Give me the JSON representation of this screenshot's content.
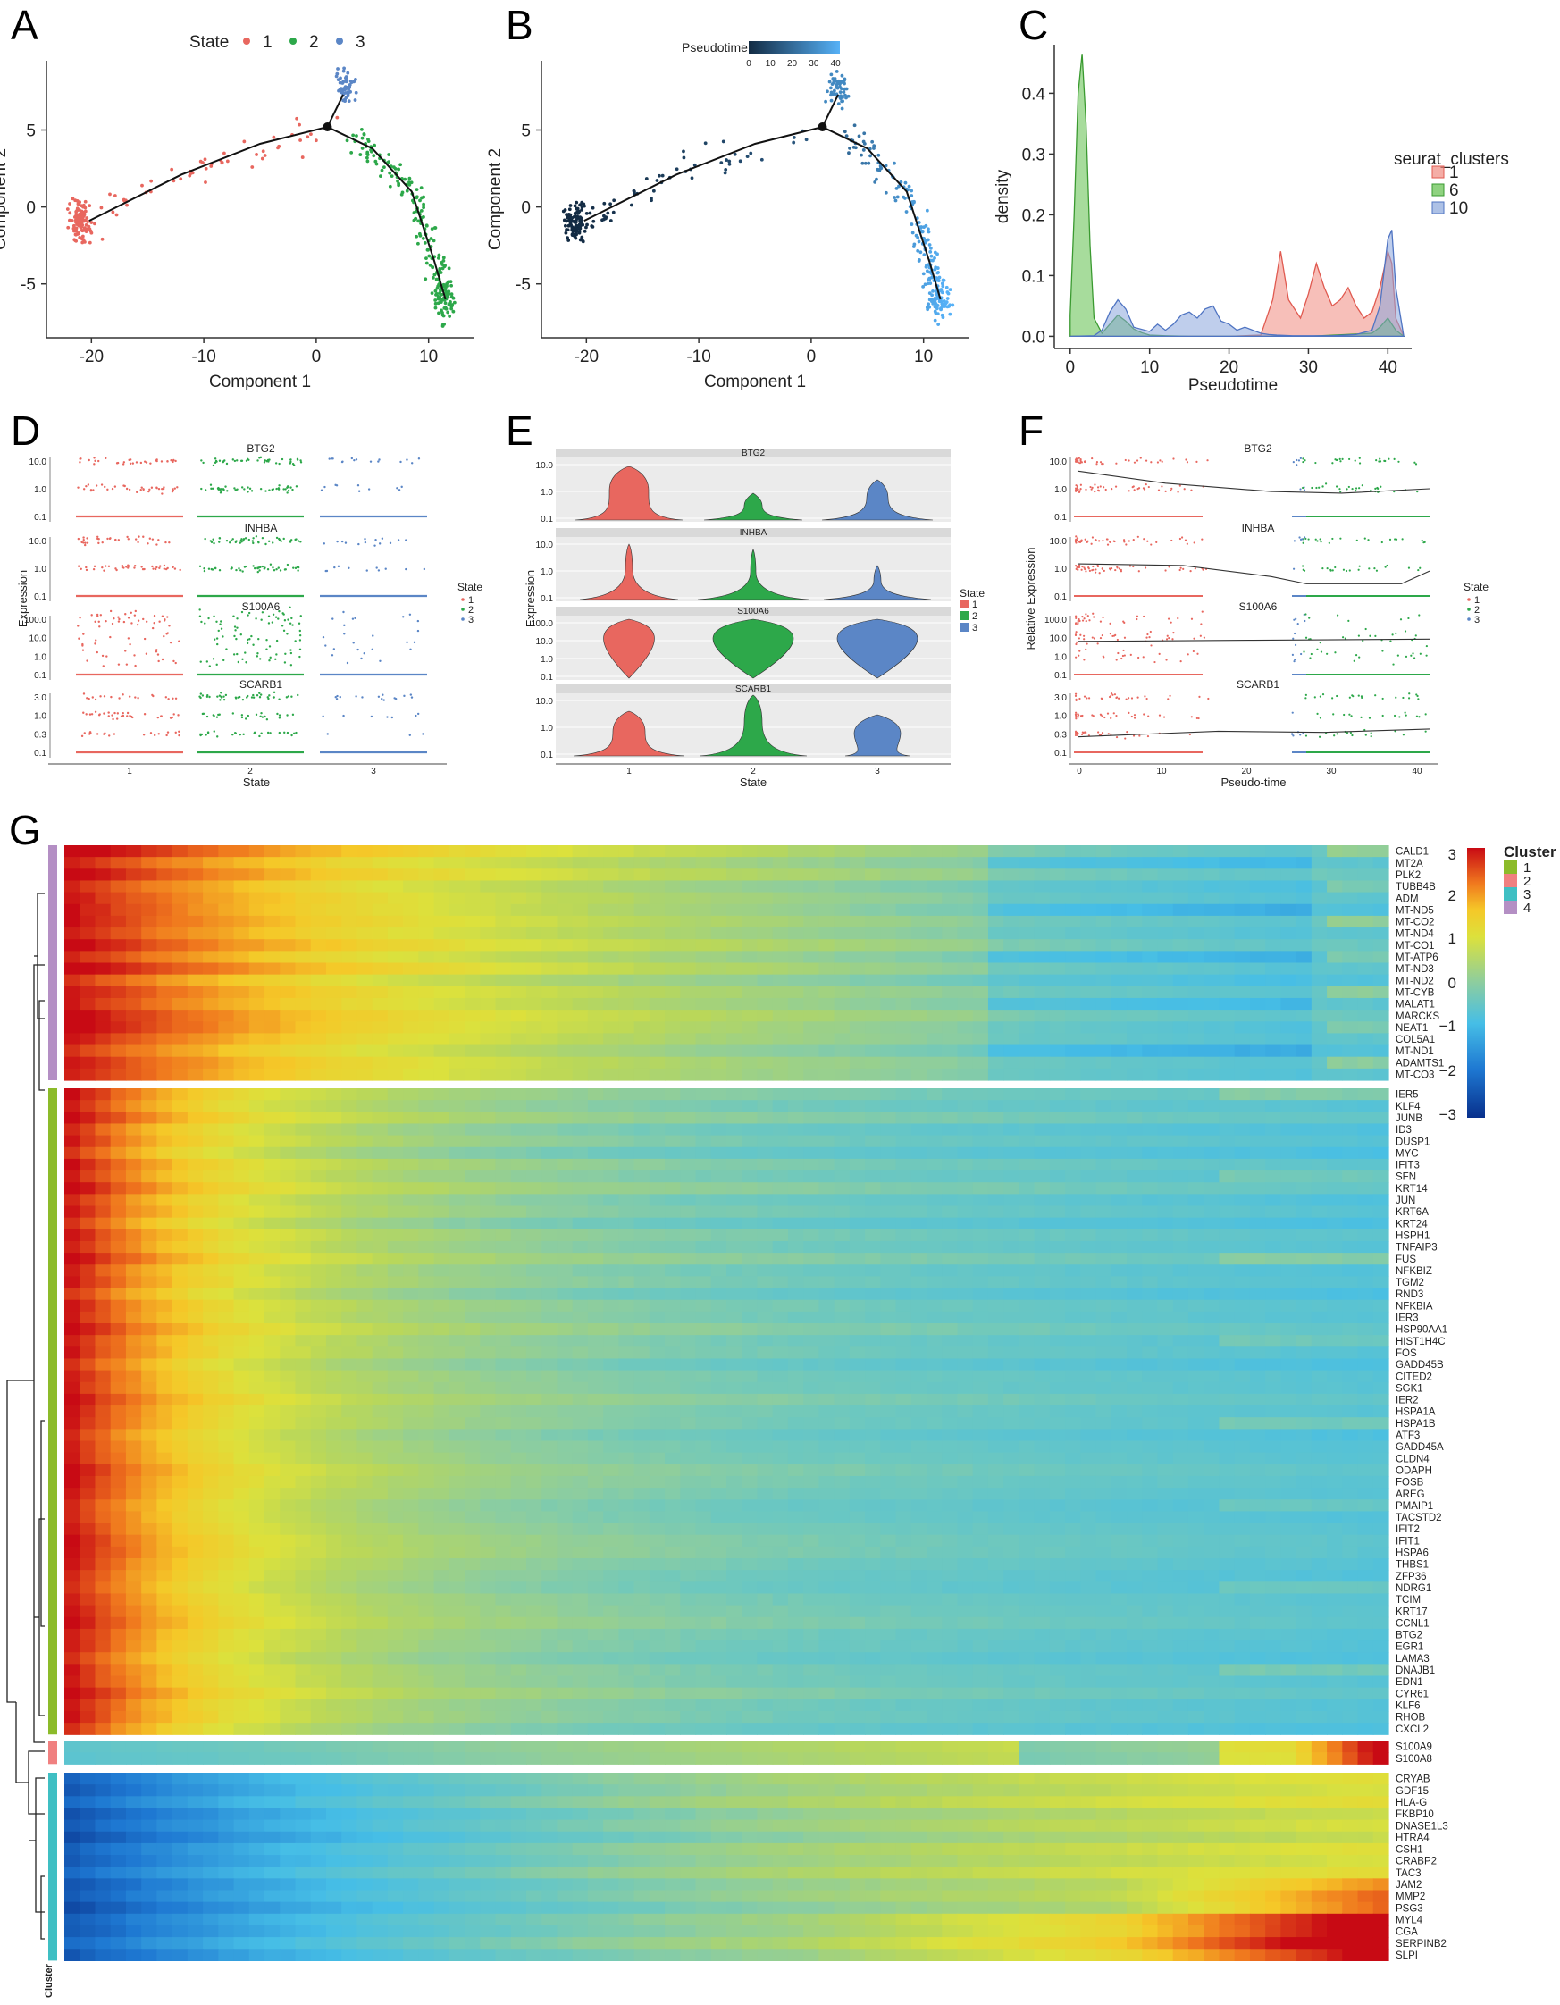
{
  "panel_letters": [
    "A",
    "B",
    "C",
    "D",
    "E",
    "F",
    "G"
  ],
  "colors": {
    "state1": "#e8675f",
    "state2": "#2da84a",
    "state3": "#5b86c6",
    "dens1": "#f08a80",
    "dens6": "#5fbf4a",
    "dens10": "#8aa6dc",
    "cluster1": "#8cbb2a",
    "cluster2": "#f08080",
    "cluster3": "#3fbfc3",
    "cluster4": "#b48fc4"
  },
  "chart_data": [
    {
      "id": "A",
      "type": "scatter",
      "title": "",
      "xlabel": "Component 1",
      "ylabel": "Component 2",
      "xlim": [
        -24,
        14
      ],
      "ylim": [
        -8.5,
        9.5
      ],
      "xticks": [
        -20,
        -10,
        0,
        10
      ],
      "yticks": [
        -5,
        0,
        5
      ],
      "legend": {
        "title": "State",
        "entries": [
          "1",
          "2",
          "3"
        ],
        "placement": "top"
      },
      "trajectory": [
        [
          -20.2,
          -0.9
        ],
        [
          -12,
          2.1
        ],
        [
          -5,
          4.1
        ],
        [
          1,
          5.2
        ],
        [
          5,
          3.8
        ],
        [
          8.5,
          1
        ],
        [
          10.5,
          -3.5
        ],
        [
          11.5,
          -6
        ]
      ],
      "branch": [
        [
          1,
          5.2
        ],
        [
          2.4,
          7.3
        ]
      ],
      "series": [
        {
          "name": "1",
          "path": [
            [
              -20.8,
              -1.2
            ],
            [
              -12,
              2.1
            ],
            [
              1,
              5.0
            ]
          ],
          "cluster": [
            -21,
            -1
          ],
          "n_cluster": 110,
          "n_spread": 55
        },
        {
          "name": "2",
          "path": [
            [
              3,
              4.8
            ],
            [
              8.5,
              1
            ],
            [
              10.5,
              -3.5
            ],
            [
              11.5,
              -6
            ]
          ],
          "cluster": [
            11.4,
            -6
          ],
          "n_cluster": 60,
          "n_spread": 160
        },
        {
          "name": "3",
          "path": [
            [
              2.4,
              7.8
            ]
          ],
          "cluster": [
            2.4,
            7.8
          ],
          "n_cluster": 50,
          "n_spread": 0
        }
      ]
    },
    {
      "id": "B",
      "type": "scatter",
      "title": "",
      "xlabel": "Component 1",
      "ylabel": "Component 2",
      "xlim": [
        -24,
        14
      ],
      "ylim": [
        -8.5,
        9.5
      ],
      "xticks": [
        -20,
        -10,
        0,
        10
      ],
      "yticks": [
        -5,
        0,
        5
      ],
      "legend": {
        "title": "Pseudotime",
        "ticks": [
          0,
          10,
          20,
          30,
          40
        ],
        "range": [
          0,
          42
        ],
        "low_color": "#132b43",
        "high_color": "#56b1f7",
        "placement": "top"
      },
      "trajectory": [
        [
          -20.2,
          -0.9
        ],
        [
          -12,
          2.1
        ],
        [
          -5,
          4.1
        ],
        [
          1,
          5.2
        ],
        [
          5,
          3.8
        ],
        [
          8.5,
          1
        ],
        [
          10.5,
          -3.5
        ],
        [
          11.5,
          -6
        ]
      ],
      "branch": [
        [
          1,
          5.2
        ],
        [
          2.4,
          7.3
        ]
      ]
    },
    {
      "id": "C",
      "type": "area",
      "title": "",
      "xlabel": "Pseudotime",
      "ylabel": "density",
      "xlim": [
        -2,
        43
      ],
      "ylim": [
        -0.02,
        0.48
      ],
      "xticks": [
        0,
        10,
        20,
        30,
        40
      ],
      "yticks": [
        0.0,
        0.1,
        0.2,
        0.3,
        0.4
      ],
      "legend": {
        "title": "seurat_clusters",
        "entries": [
          "1",
          "6",
          "10"
        ],
        "placement": "right"
      },
      "series": [
        {
          "name": "1",
          "x": [
            0,
            20,
            24,
            25.5,
            26.5,
            27.5,
            29,
            30,
            31,
            32,
            33,
            34,
            35,
            36,
            37,
            38,
            39,
            40,
            40.5,
            41,
            42
          ],
          "y": [
            0,
            0,
            0.002,
            0.06,
            0.14,
            0.06,
            0.03,
            0.07,
            0.12,
            0.08,
            0.05,
            0.06,
            0.08,
            0.05,
            0.03,
            0.04,
            0.08,
            0.14,
            0.12,
            0.03,
            0
          ]
        },
        {
          "name": "6",
          "x": [
            0,
            0.5,
            1,
            1.5,
            2,
            2.5,
            3,
            4,
            5,
            6,
            7,
            8,
            9,
            10,
            12,
            15,
            20,
            30,
            38,
            39,
            40,
            41,
            42
          ],
          "y": [
            0.035,
            0.2,
            0.4,
            0.465,
            0.35,
            0.15,
            0.03,
            0.005,
            0.02,
            0.035,
            0.025,
            0.012,
            0.006,
            0.002,
            0.001,
            0,
            0,
            0,
            0.005,
            0.015,
            0.03,
            0.01,
            0
          ]
        },
        {
          "name": "10",
          "x": [
            0,
            3,
            4,
            5,
            6,
            7,
            8,
            10,
            11,
            12,
            13,
            14,
            15,
            16,
            17,
            18,
            19,
            20,
            21,
            22,
            23,
            24,
            25,
            26,
            28,
            30,
            33,
            36,
            38,
            39,
            40,
            40.5,
            41,
            42
          ],
          "y": [
            0,
            0.001,
            0.01,
            0.04,
            0.06,
            0.045,
            0.015,
            0.008,
            0.02,
            0.01,
            0.02,
            0.035,
            0.04,
            0.03,
            0.045,
            0.05,
            0.025,
            0.02,
            0.01,
            0.015,
            0.01,
            0.005,
            0.003,
            0.002,
            0.001,
            0.001,
            0.001,
            0.003,
            0.01,
            0.05,
            0.16,
            0.175,
            0.08,
            0
          ]
        }
      ]
    },
    {
      "id": "D",
      "type": "scatter",
      "title": "",
      "xlabel": "State",
      "ylabel": "Expression",
      "categories": [
        "1",
        "2",
        "3"
      ],
      "legend": {
        "title": "State",
        "entries": [
          "1",
          "2",
          "3"
        ],
        "placement": "right"
      },
      "facets": [
        {
          "gene": "BTG2",
          "yticks": [
            "0.1",
            "1.0",
            "10.0"
          ],
          "levels": [
            0,
            1.0,
            1.6,
            2.0,
            2.3
          ]
        },
        {
          "gene": "INHBA",
          "yticks": [
            "0.1",
            "1.0",
            "10.0"
          ],
          "levels": [
            0,
            1.0,
            1.6,
            2.0
          ]
        },
        {
          "gene": "S100A6",
          "yticks": [
            "0.1",
            "1.0",
            "10.0",
            "100.0"
          ],
          "levels": [
            0,
            1.0,
            1.6,
            2.0,
            2.3,
            2.6,
            3.0
          ]
        },
        {
          "gene": "SCARB1",
          "yticks": [
            "0.1",
            "0.3",
            "1.0",
            "3.0"
          ],
          "levels": [
            0,
            0.5,
            1.0,
            1.3,
            1.6
          ]
        }
      ]
    },
    {
      "id": "E",
      "type": "violin",
      "title": "",
      "xlabel": "State",
      "ylabel": "Expression",
      "categories": [
        "1",
        "2",
        "3"
      ],
      "legend": {
        "title": "State",
        "entries": [
          "1",
          "2",
          "3"
        ],
        "placement": "right"
      },
      "facets": [
        {
          "gene": "BTG2",
          "yticks": [
            "0.1",
            "1.0",
            "10.0"
          ]
        },
        {
          "gene": "INHBA",
          "yticks": [
            "0.1",
            "1.0",
            "10.0"
          ]
        },
        {
          "gene": "S100A6",
          "yticks": [
            "0.1",
            "1.0",
            "10.0",
            "100.0"
          ]
        },
        {
          "gene": "SCARB1",
          "yticks": [
            "0.1",
            "1.0",
            "10.0"
          ]
        }
      ]
    },
    {
      "id": "F",
      "type": "scatter",
      "title": "",
      "xlabel": "Pseudo-time",
      "ylabel": "Relative Expression",
      "xticks": [
        "0",
        "10",
        "20",
        "30",
        "40"
      ],
      "legend": {
        "title": "State",
        "entries": [
          "1",
          "2",
          "3"
        ],
        "placement": "right"
      },
      "facets": [
        {
          "gene": "BTG2",
          "yticks": [
            "0.1",
            "1.0",
            "10.0"
          ]
        },
        {
          "gene": "INHBA",
          "yticks": [
            "0.1",
            "1.0",
            "10.0"
          ]
        },
        {
          "gene": "S100A6",
          "yticks": [
            "0.1",
            "1.0",
            "10.0",
            "100.0"
          ]
        },
        {
          "gene": "SCARB1",
          "yticks": [
            "0.1",
            "0.3",
            "1.0",
            "3.0"
          ]
        }
      ]
    },
    {
      "id": "G",
      "type": "heatmap",
      "title": "",
      "scale": {
        "min": -3,
        "max": 3,
        "ticks": [
          "3",
          "2",
          "1",
          "0",
          "−1",
          "−2",
          "−3"
        ]
      },
      "legend": {
        "title": "Cluster",
        "entries": [
          "1",
          "2",
          "3",
          "4"
        ],
        "placement": "right"
      },
      "annotation_label": "Cluster",
      "blocks": [
        {
          "cluster": "4",
          "genes": [
            "CALD1",
            "MT2A",
            "PLK2",
            "TUBB4B",
            "ADM",
            "MT-ND5",
            "MT-CO2",
            "MT-ND4",
            "MT-CO1",
            "MT-ATP6",
            "MT-ND3",
            "MT-ND2",
            "MT-CYB",
            "MALAT1",
            "MARCKS",
            "NEAT1",
            "COL5A1",
            "MT-ND1",
            "ADAMTS1",
            "MT-CO3"
          ]
        },
        {
          "cluster": "1",
          "genes": [
            "IER5",
            "KLF4",
            "JUNB",
            "ID3",
            "DUSP1",
            "MYC",
            "IFIT3",
            "SFN",
            "KRT14",
            "JUN",
            "KRT6A",
            "KRT24",
            "HSPH1",
            "TNFAIP3",
            "FUS",
            "NFKBIZ",
            "TGM2",
            "RND3",
            "NFKBIA",
            "IER3",
            "HSP90AA1",
            "HIST1H4C",
            "FOS",
            "GADD45B",
            "CITED2",
            "SGK1",
            "IER2",
            "HSPA1A",
            "HSPA1B",
            "ATF3",
            "GADD45A",
            "CLDN4",
            "ODAPH",
            "FOSB",
            "AREG",
            "PMAIP1",
            "TACSTD2",
            "IFIT2",
            "IFIT1",
            "HSPA6",
            "THBS1",
            "ZFP36",
            "NDRG1",
            "TCIM",
            "KRT17",
            "CCNL1",
            "BTG2",
            "EGR1",
            "LAMA3",
            "DNAJB1",
            "EDN1",
            "CYR61",
            "KLF6",
            "RHOB",
            "CXCL2"
          ]
        },
        {
          "cluster": "2",
          "genes": [
            "S100A9",
            "S100A8"
          ]
        },
        {
          "cluster": "3",
          "genes": [
            "CRYAB",
            "GDF15",
            "HLA-G",
            "FKBP10",
            "DNASE1L3",
            "HTRA4",
            "CSH1",
            "CRABP2",
            "TAC3",
            "JAM2",
            "MMP2",
            "PSG3",
            "MYL4",
            "CGA",
            "SERPINB2",
            "SLPI"
          ]
        }
      ]
    }
  ]
}
